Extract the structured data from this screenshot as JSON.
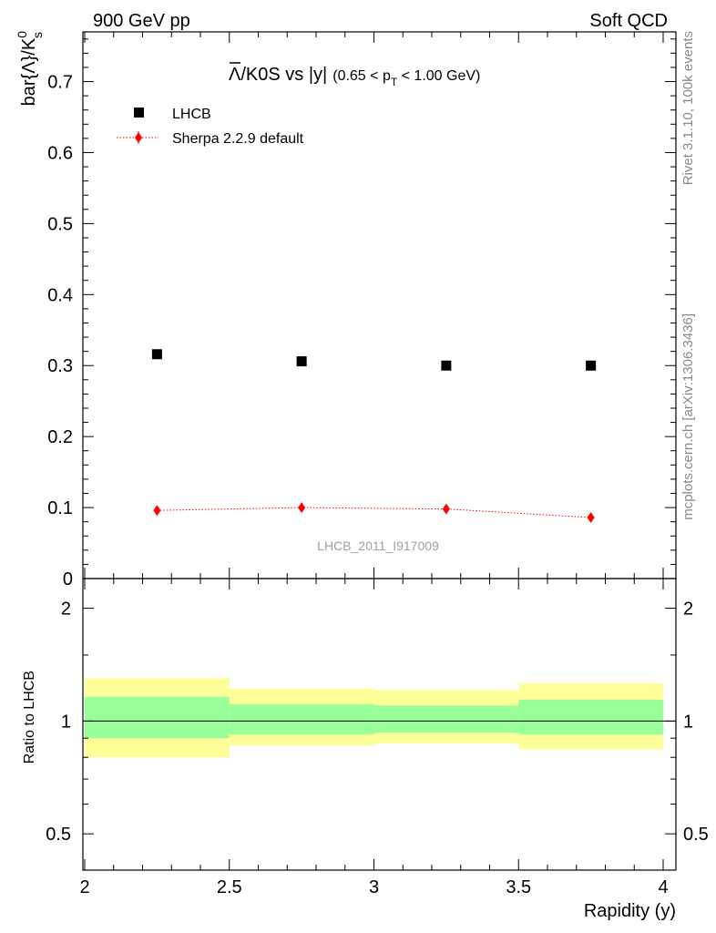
{
  "header": {
    "left": "900 GeV pp",
    "right": "Soft QCD"
  },
  "side_labels": {
    "rivet": "Rivet 3.1.10,  100k events",
    "mcplots": "mcplots.cern.ch [arXiv:1306.3436]"
  },
  "watermark": "LHCB_2011_I917009",
  "chart_data": [
    {
      "type": "scatter",
      "panel": "main",
      "title": {
        "main": "Λ/K0S vs |y|",
        "lambda_bar": "Λ",
        "rest": "/K0S vs |y|",
        "cut_open": "(0.65 < p",
        "cut_sub": "T",
        "cut_close": " < 1.00 GeV)"
      },
      "ylabel": {
        "prefix": "bar{Λ}/K",
        "sup": "0",
        "sub": "s"
      },
      "xlim": [
        2,
        4
      ],
      "ylim": [
        0,
        0.77
      ],
      "yticks": [
        0,
        0.1,
        0.2,
        0.3,
        0.4,
        0.5,
        0.6,
        0.7
      ],
      "ytick_labels": [
        "0",
        "0.1",
        "0.2",
        "0.3",
        "0.4",
        "0.5",
        "0.6",
        "0.7"
      ],
      "legend": [
        {
          "label": "LHCB",
          "marker": "square",
          "color": "#000000"
        },
        {
          "label": "Sherpa 2.2.9 default",
          "marker": "diamond",
          "line": "dotted",
          "color": "#ff0000"
        }
      ],
      "series": [
        {
          "name": "LHCB",
          "x": [
            2.25,
            2.75,
            3.25,
            3.75
          ],
          "y": [
            0.316,
            0.306,
            0.3,
            0.3
          ]
        },
        {
          "name": "Sherpa 2.2.9 default",
          "x": [
            2.25,
            2.75,
            3.25,
            3.75
          ],
          "y": [
            0.096,
            0.1,
            0.098,
            0.086
          ],
          "yerr": [
            0.005,
            0.005,
            0.005,
            0.005
          ]
        }
      ]
    },
    {
      "type": "area",
      "panel": "ratio",
      "ylabel": "Ratio to LHCB",
      "xlabel": "Rapidity (y)",
      "xlim": [
        2,
        4
      ],
      "ylim": [
        0.4,
        2.4
      ],
      "yscale": "log",
      "yticks": [
        0.5,
        1,
        2
      ],
      "ytick_labels": [
        "0.5",
        "1",
        "2"
      ],
      "xticks": [
        2,
        2.5,
        3,
        3.5,
        4
      ],
      "xtick_labels": [
        "2",
        "2.5",
        "3",
        "3.5",
        "4"
      ],
      "reference": 1,
      "bins": [
        {
          "x_lo": 2.0,
          "x_hi": 2.5,
          "inner": [
            0.9,
            1.16
          ],
          "outer": [
            0.8,
            1.3
          ]
        },
        {
          "x_lo": 2.5,
          "x_hi": 3.0,
          "inner": [
            0.92,
            1.11
          ],
          "outer": [
            0.86,
            1.22
          ]
        },
        {
          "x_lo": 3.0,
          "x_hi": 3.5,
          "inner": [
            0.93,
            1.1
          ],
          "outer": [
            0.87,
            1.21
          ]
        },
        {
          "x_lo": 3.5,
          "x_hi": 4.0,
          "inner": [
            0.92,
            1.14
          ],
          "outer": [
            0.84,
            1.26
          ]
        }
      ],
      "colors": {
        "inner": "#99ff99",
        "outer": "#ffff99"
      }
    }
  ]
}
